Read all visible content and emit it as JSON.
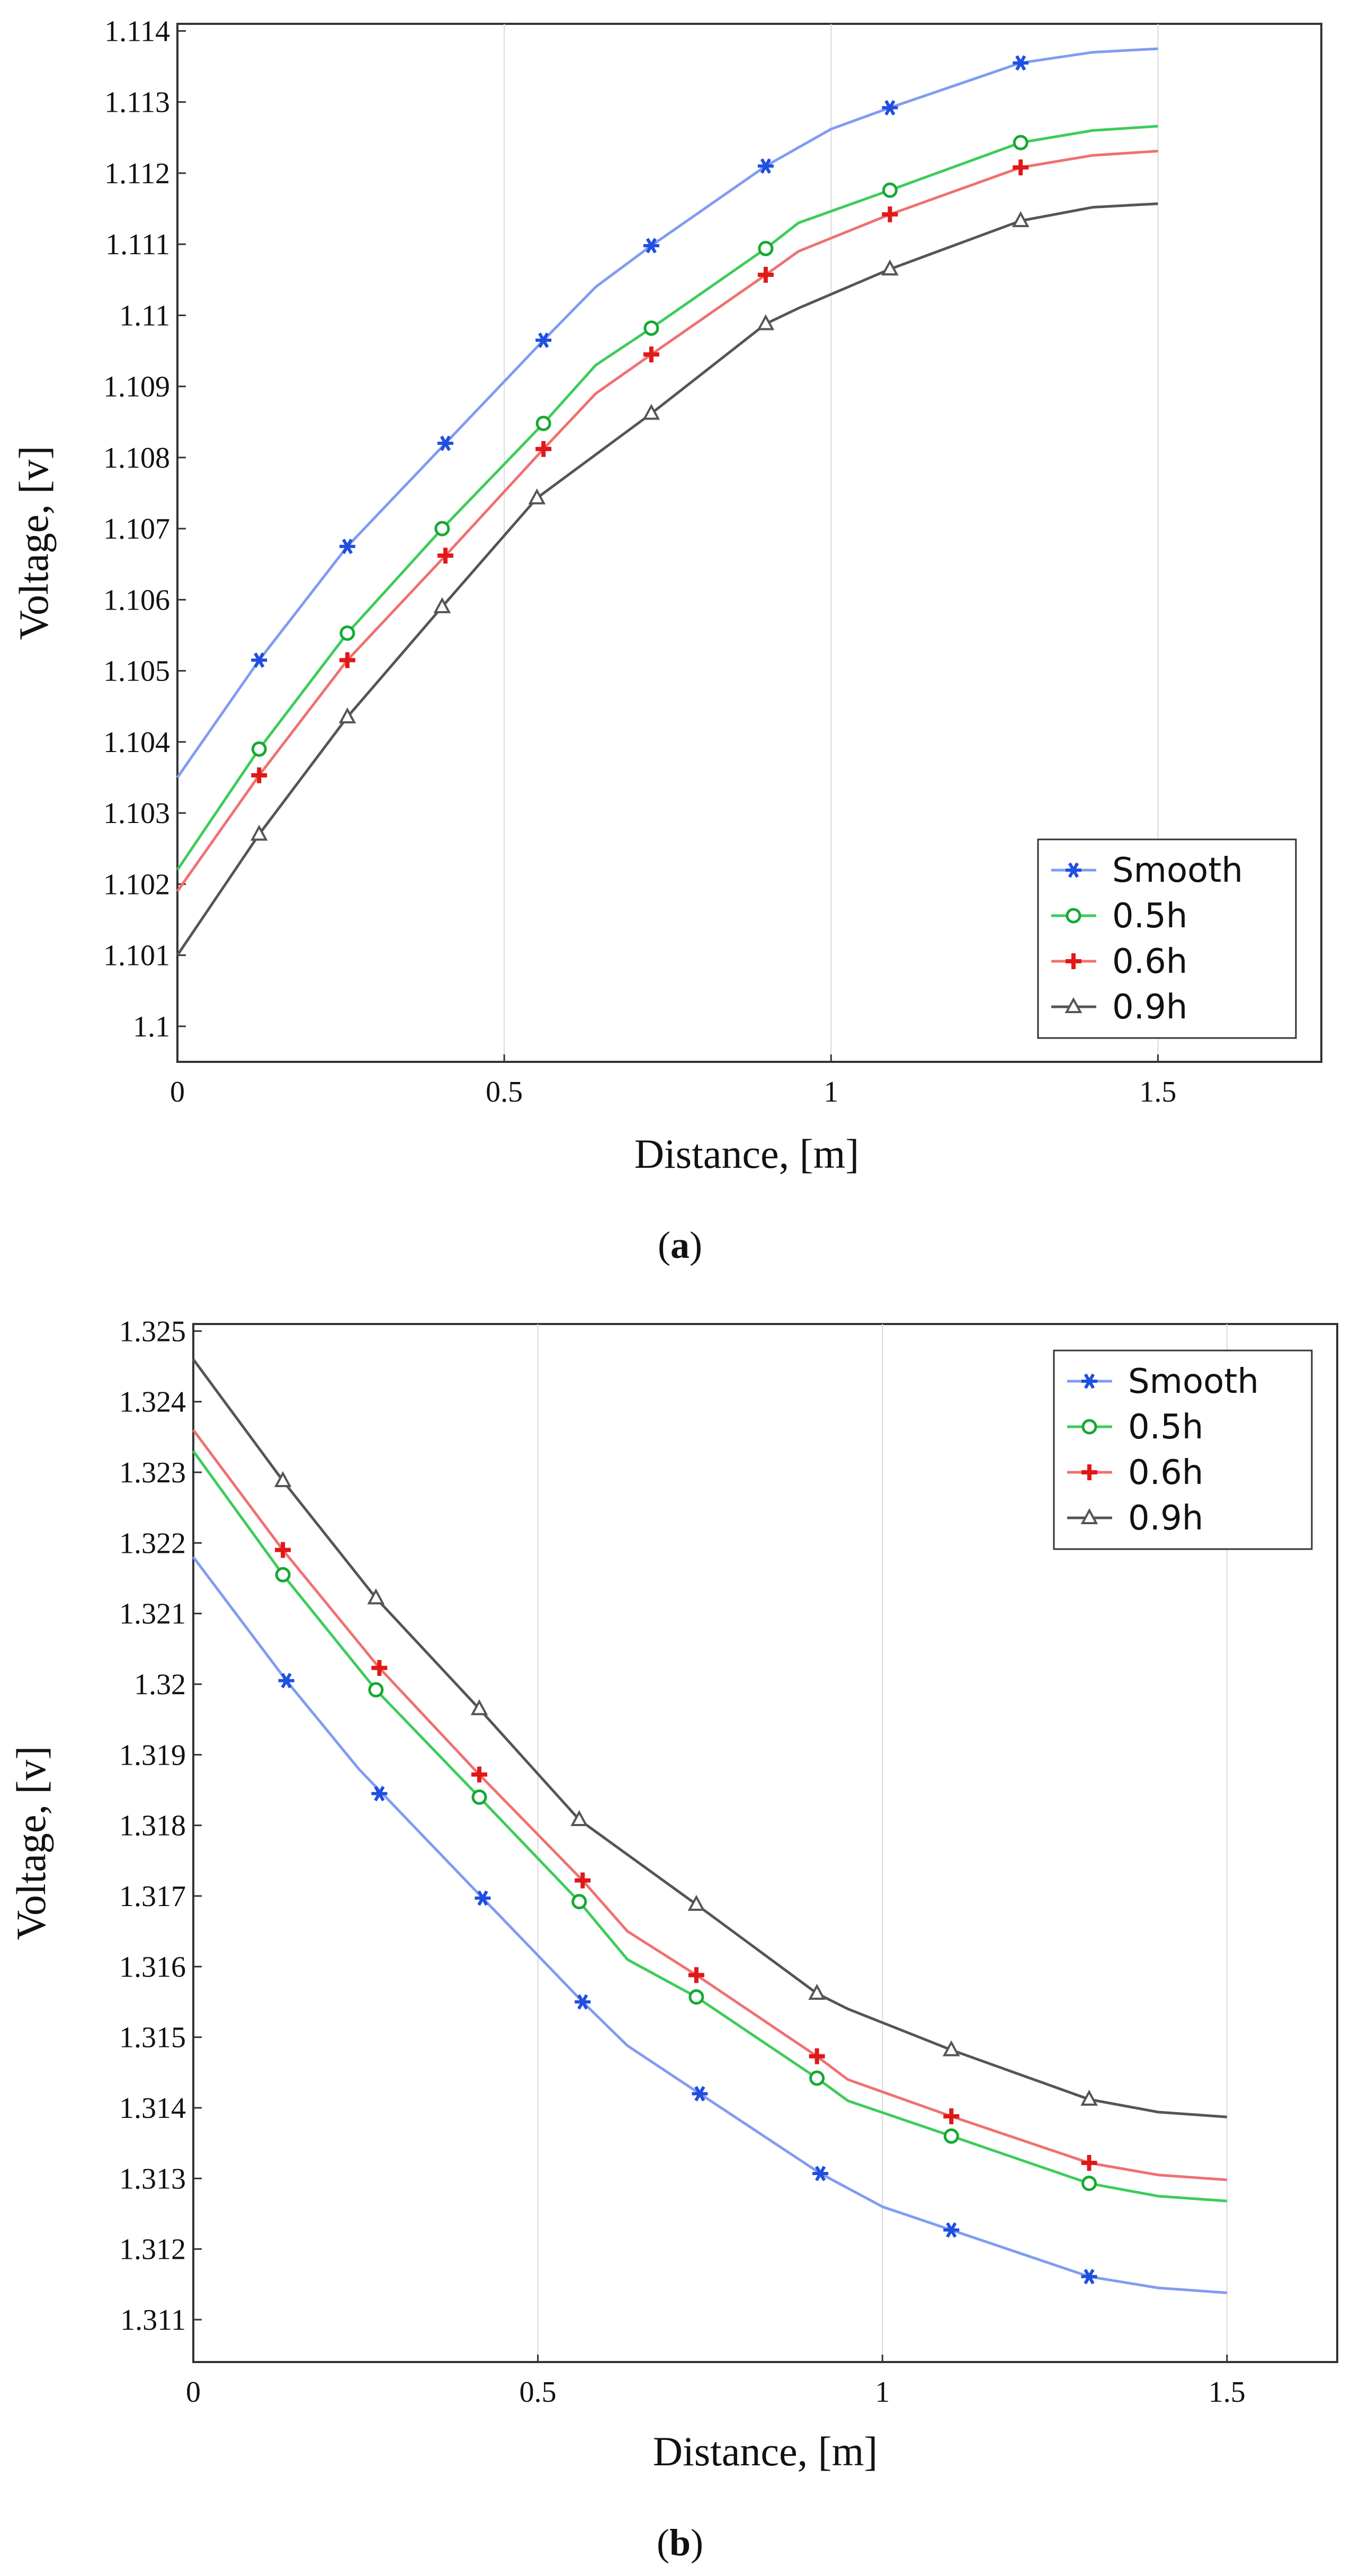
{
  "chart_data": [
    {
      "id": "a",
      "type": "line",
      "caption_letter": "a",
      "xlabel": "Distance, [m]",
      "ylabel": "Voltage, [v]",
      "xlim": [
        0,
        1.75
      ],
      "ylim": [
        1.0995,
        1.1141
      ],
      "xticks": [
        0,
        0.5,
        1,
        1.5
      ],
      "xtick_labels": [
        "0",
        "0.5",
        "1",
        "1.5"
      ],
      "yticks": [
        1.1,
        1.101,
        1.102,
        1.103,
        1.104,
        1.105,
        1.106,
        1.107,
        1.108,
        1.109,
        1.11,
        1.111,
        1.112,
        1.113,
        1.114
      ],
      "ytick_labels": [
        "1.1",
        "1.101",
        "1.102",
        "1.103",
        "1.104",
        "1.105",
        "1.106",
        "1.107",
        "1.108",
        "1.109",
        "1.11",
        "1.111",
        "1.112",
        "1.113",
        "1.114"
      ],
      "grid": true,
      "legend_position": "bottom-right",
      "series": [
        {
          "name": "Smooth",
          "color": "#1f4fe0",
          "line_color": "#7f9cf2",
          "marker": "asterisk",
          "x": [
            0,
            0.125,
            0.26,
            0.41,
            0.56,
            0.64,
            0.725,
            0.9,
            1.0,
            1.09,
            1.29,
            1.4,
            1.5
          ],
          "y": [
            1.1035,
            1.10515,
            1.10675,
            1.1082,
            1.10965,
            1.1104,
            1.11098,
            1.1121,
            1.11262,
            1.11292,
            1.11355,
            1.1137,
            1.11375
          ],
          "marker_x": [
            0.125,
            0.26,
            0.41,
            0.56,
            0.725,
            0.9,
            1.09,
            1.29
          ],
          "marker_y": [
            1.10515,
            1.10675,
            1.1082,
            1.10965,
            1.11098,
            1.1121,
            1.11292,
            1.11355
          ]
        },
        {
          "name": "0.5h",
          "color": "#17a833",
          "line_color": "#3ccc5a",
          "marker": "circle",
          "x": [
            0,
            0.125,
            0.26,
            0.405,
            0.56,
            0.64,
            0.725,
            0.9,
            0.95,
            1.09,
            1.29,
            1.4,
            1.5
          ],
          "y": [
            1.1022,
            1.1039,
            1.10553,
            1.107,
            1.10848,
            1.1093,
            1.10982,
            1.11094,
            1.1113,
            1.11176,
            1.11243,
            1.1126,
            1.11266
          ],
          "marker_x": [
            0.125,
            0.26,
            0.405,
            0.56,
            0.725,
            0.9,
            1.09,
            1.29
          ],
          "marker_y": [
            1.1039,
            1.10553,
            1.107,
            1.10848,
            1.10982,
            1.11094,
            1.11176,
            1.11243
          ]
        },
        {
          "name": "0.6h",
          "color": "#e01818",
          "line_color": "#f07070",
          "marker": "plus",
          "x": [
            0,
            0.125,
            0.26,
            0.41,
            0.56,
            0.64,
            0.725,
            0.9,
            0.95,
            1.09,
            1.29,
            1.4,
            1.5
          ],
          "y": [
            1.1019,
            1.10353,
            1.10515,
            1.10662,
            1.10812,
            1.1089,
            1.10945,
            1.11057,
            1.1109,
            1.11142,
            1.11208,
            1.11225,
            1.11231
          ],
          "marker_x": [
            0.125,
            0.26,
            0.41,
            0.56,
            0.725,
            0.9,
            1.09,
            1.29
          ],
          "marker_y": [
            1.10353,
            1.10515,
            1.10662,
            1.10812,
            1.10945,
            1.11057,
            1.11142,
            1.11208
          ]
        },
        {
          "name": "0.9h",
          "color": "#555555",
          "line_color": "#555555",
          "marker": "triangle",
          "x": [
            0,
            0.125,
            0.26,
            0.405,
            0.55,
            0.725,
            0.9,
            0.95,
            1.09,
            1.29,
            1.4,
            1.5
          ],
          "y": [
            1.101,
            1.1027,
            1.10435,
            1.1059,
            1.10743,
            1.10862,
            1.10988,
            1.1101,
            1.11065,
            1.11133,
            1.11152,
            1.11157
          ],
          "marker_x": [
            0.125,
            0.26,
            0.405,
            0.55,
            0.725,
            0.9,
            1.09,
            1.29
          ],
          "marker_y": [
            1.1027,
            1.10435,
            1.1059,
            1.10743,
            1.10862,
            1.10988,
            1.11065,
            1.11133
          ]
        }
      ]
    },
    {
      "id": "b",
      "type": "line",
      "caption_letter": "b",
      "xlabel": "Distance, [m]",
      "ylabel": "Voltage, [v]",
      "xlim": [
        0,
        1.66
      ],
      "ylim": [
        1.3104,
        1.3251
      ],
      "xticks": [
        0,
        0.5,
        1,
        1.5
      ],
      "xtick_labels": [
        "0",
        "0.5",
        "1",
        "1.5"
      ],
      "yticks": [
        1.311,
        1.312,
        1.313,
        1.314,
        1.315,
        1.316,
        1.317,
        1.318,
        1.319,
        1.32,
        1.321,
        1.322,
        1.323,
        1.324,
        1.325
      ],
      "ytick_labels": [
        "1.311",
        "1.312",
        "1.313",
        "1.314",
        "1.315",
        "1.316",
        "1.317",
        "1.318",
        "1.319",
        "1.32",
        "1.321",
        "1.322",
        "1.323",
        "1.324",
        "1.325"
      ],
      "grid": true,
      "legend_position": "top-right",
      "series": [
        {
          "name": "Smooth",
          "color": "#1f4fe0",
          "line_color": "#7f9cf2",
          "marker": "asterisk",
          "x": [
            0,
            0.135,
            0.24,
            0.42,
            0.565,
            0.63,
            0.735,
            0.91,
            1.0,
            1.1,
            1.3,
            1.4,
            1.5
          ],
          "y": [
            1.3218,
            1.32005,
            1.3188,
            1.31697,
            1.3155,
            1.31488,
            1.3142,
            1.31307,
            1.3126,
            1.31227,
            1.31161,
            1.31145,
            1.31138
          ],
          "marker_x": [
            0.135,
            0.27,
            0.42,
            0.565,
            0.735,
            0.91,
            1.1,
            1.3
          ],
          "marker_y": [
            1.32005,
            1.31845,
            1.31697,
            1.3155,
            1.3142,
            1.31307,
            1.31227,
            1.31161
          ]
        },
        {
          "name": "0.5h",
          "color": "#17a833",
          "line_color": "#3ccc5a",
          "marker": "circle",
          "x": [
            0,
            0.13,
            0.265,
            0.415,
            0.56,
            0.63,
            0.73,
            0.905,
            0.95,
            1.1,
            1.3,
            1.4,
            1.5
          ],
          "y": [
            1.3233,
            1.32155,
            1.31992,
            1.3184,
            1.31692,
            1.3161,
            1.31557,
            1.31442,
            1.3141,
            1.3136,
            1.31293,
            1.31275,
            1.31268
          ],
          "marker_x": [
            0.13,
            0.265,
            0.415,
            0.56,
            0.73,
            0.905,
            1.1,
            1.3
          ],
          "marker_y": [
            1.32155,
            1.31992,
            1.3184,
            1.31692,
            1.31557,
            1.31442,
            1.3136,
            1.31293
          ]
        },
        {
          "name": "0.6h",
          "color": "#e01818",
          "line_color": "#f07070",
          "marker": "plus",
          "x": [
            0,
            0.13,
            0.27,
            0.415,
            0.565,
            0.63,
            0.73,
            0.905,
            0.95,
            1.1,
            1.3,
            1.4,
            1.5
          ],
          "y": [
            1.3236,
            1.3219,
            1.32023,
            1.31872,
            1.31722,
            1.3165,
            1.31588,
            1.31473,
            1.3144,
            1.31388,
            1.31322,
            1.31305,
            1.31298
          ],
          "marker_x": [
            0.13,
            0.27,
            0.415,
            0.565,
            0.73,
            0.905,
            1.1,
            1.3
          ],
          "marker_y": [
            1.3219,
            1.32023,
            1.31872,
            1.31722,
            1.31588,
            1.31473,
            1.31388,
            1.31322
          ]
        },
        {
          "name": "0.9h",
          "color": "#555555",
          "line_color": "#555555",
          "marker": "triangle",
          "x": [
            0,
            0.13,
            0.265,
            0.415,
            0.56,
            0.73,
            0.905,
            0.95,
            1.1,
            1.3,
            1.4,
            1.5
          ],
          "y": [
            1.3246,
            1.32288,
            1.32122,
            1.31965,
            1.31808,
            1.31688,
            1.31562,
            1.3154,
            1.31482,
            1.31412,
            1.31394,
            1.31387
          ],
          "marker_x": [
            0.13,
            0.265,
            0.415,
            0.56,
            0.73,
            0.905,
            1.1,
            1.3
          ],
          "marker_y": [
            1.32288,
            1.32122,
            1.31965,
            1.31808,
            1.31688,
            1.31562,
            1.31482,
            1.31412
          ]
        }
      ]
    }
  ]
}
